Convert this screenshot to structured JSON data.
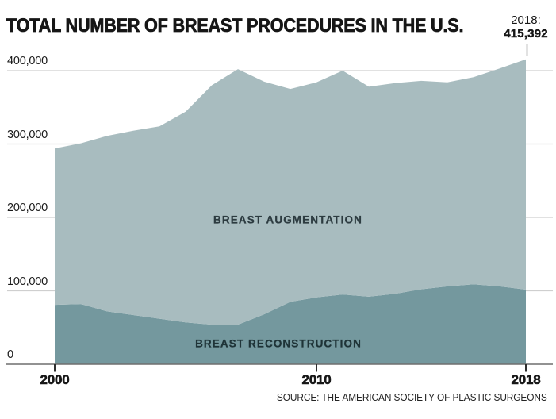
{
  "title": "TOTAL NUMBER OF BREAST PROCEDURES IN THE U.S.",
  "annotation": {
    "line1": "2018:",
    "line2": "415,392"
  },
  "source": "SOURCE: THE AMERICAN SOCIETY OF PLASTIC SURGEONS",
  "colors": {
    "augmentation_area": "#a8bcbf",
    "reconstruction_area": "#74989e",
    "gridline": "#cfcfcf",
    "baseline": "#6f6f6f",
    "tick": "#2e2e2e",
    "text": "#161616"
  },
  "chart_data": {
    "type": "area",
    "stacked": true,
    "title": "TOTAL NUMBER OF BREAST PROCEDURES IN THE U.S.",
    "xlabel": "",
    "ylabel": "",
    "xlim": [
      2000,
      2018
    ],
    "ylim": [
      0,
      430000
    ],
    "grid": true,
    "legend": "labels-inside-areas",
    "x": [
      2000,
      2001,
      2002,
      2003,
      2004,
      2005,
      2006,
      2007,
      2008,
      2009,
      2010,
      2011,
      2012,
      2013,
      2014,
      2015,
      2016,
      2017,
      2018
    ],
    "series": [
      {
        "name": "BREAST RECONSTRUCTION",
        "color": "#74989e",
        "values": [
          81000,
          82000,
          72000,
          67000,
          62000,
          57000,
          54000,
          54000,
          68000,
          85000,
          91000,
          95000,
          92000,
          96000,
          102000,
          106000,
          109000,
          106000,
          101657
        ]
      },
      {
        "name": "BREAST AUGMENTATION",
        "color": "#a8bcbf",
        "values": [
          213000,
          219000,
          239000,
          251000,
          262000,
          287000,
          326000,
          348000,
          317000,
          290000,
          293000,
          305000,
          286000,
          287000,
          284000,
          278000,
          282000,
          297000,
          313735
        ]
      }
    ],
    "totals": [
      294000,
      301000,
      311000,
      318000,
      324000,
      344000,
      380000,
      402000,
      385000,
      375000,
      384000,
      400000,
      378000,
      383000,
      386000,
      384000,
      391000,
      403000,
      415392
    ],
    "point_annotation": {
      "x": 2018,
      "total": 415392,
      "label": "2018:",
      "value_label": "415,392"
    },
    "y_ticks": [
      {
        "value": 0,
        "label": "0"
      },
      {
        "value": 100000,
        "label": "100,000"
      },
      {
        "value": 200000,
        "label": "200,000"
      },
      {
        "value": 300000,
        "label": "300,000"
      },
      {
        "value": 400000,
        "label": "400,000"
      }
    ],
    "x_ticks": [
      {
        "value": 2000,
        "label": "2000"
      },
      {
        "value": 2010,
        "label": "2010"
      },
      {
        "value": 2018,
        "label": "2018"
      }
    ]
  }
}
